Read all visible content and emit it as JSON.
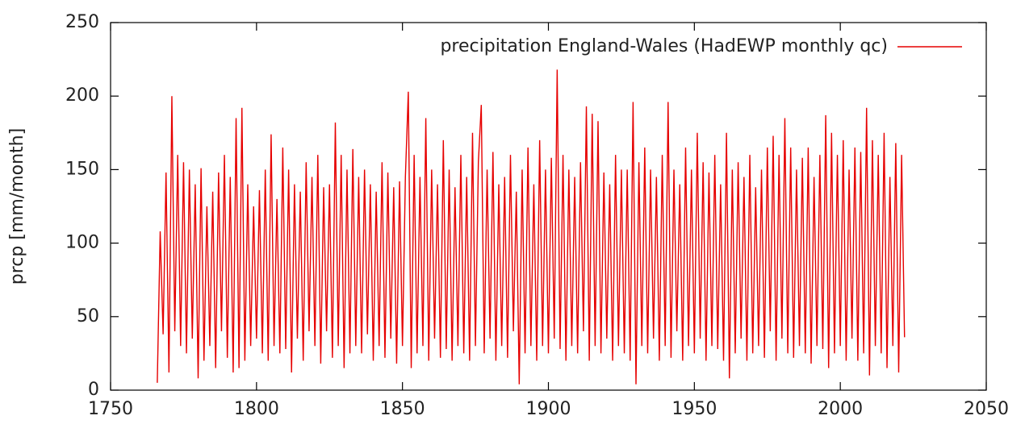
{
  "chart_data": {
    "type": "line",
    "ylabel": "prcp [mm/month]",
    "xlim": [
      1750,
      2050
    ],
    "xticks": [
      1750,
      1800,
      1850,
      1900,
      1950,
      2000,
      2050
    ],
    "ylim": [
      0,
      250
    ],
    "yticks": [
      0,
      50,
      100,
      150,
      200,
      250
    ],
    "legend": "top right",
    "x": [
      1766,
      1767,
      1768,
      1769,
      1770,
      1771,
      1772,
      1773,
      1774,
      1775,
      1776,
      1777,
      1778,
      1779,
      1780,
      1781,
      1782,
      1783,
      1784,
      1785,
      1786,
      1787,
      1788,
      1789,
      1790,
      1791,
      1792,
      1793,
      1794,
      1795,
      1796,
      1797,
      1798,
      1799,
      1800,
      1801,
      1802,
      1803,
      1804,
      1805,
      1806,
      1807,
      1808,
      1809,
      1810,
      1811,
      1812,
      1813,
      1814,
      1815,
      1816,
      1817,
      1818,
      1819,
      1820,
      1821,
      1822,
      1823,
      1824,
      1825,
      1826,
      1827,
      1828,
      1829,
      1830,
      1831,
      1832,
      1833,
      1834,
      1835,
      1836,
      1837,
      1838,
      1839,
      1840,
      1841,
      1842,
      1843,
      1844,
      1845,
      1846,
      1847,
      1848,
      1849,
      1850,
      1851,
      1852,
      1853,
      1854,
      1855,
      1856,
      1857,
      1858,
      1859,
      1860,
      1861,
      1862,
      1863,
      1864,
      1865,
      1866,
      1867,
      1868,
      1869,
      1870,
      1871,
      1872,
      1873,
      1874,
      1875,
      1876,
      1877,
      1878,
      1879,
      1880,
      1881,
      1882,
      1883,
      1884,
      1885,
      1886,
      1887,
      1888,
      1889,
      1890,
      1891,
      1892,
      1893,
      1894,
      1895,
      1896,
      1897,
      1898,
      1899,
      1900,
      1901,
      1902,
      1903,
      1904,
      1905,
      1906,
      1907,
      1908,
      1909,
      1910,
      1911,
      1912,
      1913,
      1914,
      1915,
      1916,
      1917,
      1918,
      1919,
      1920,
      1921,
      1922,
      1923,
      1924,
      1925,
      1926,
      1927,
      1928,
      1929,
      1930,
      1931,
      1932,
      1933,
      1934,
      1935,
      1936,
      1937,
      1938,
      1939,
      1940,
      1941,
      1942,
      1943,
      1944,
      1945,
      1946,
      1947,
      1948,
      1949,
      1950,
      1951,
      1952,
      1953,
      1954,
      1955,
      1956,
      1957,
      1958,
      1959,
      1960,
      1961,
      1962,
      1963,
      1964,
      1965,
      1966,
      1967,
      1968,
      1969,
      1970,
      1971,
      1972,
      1973,
      1974,
      1975,
      1976,
      1977,
      1978,
      1979,
      1980,
      1981,
      1982,
      1983,
      1984,
      1985,
      1986,
      1987,
      1988,
      1989,
      1990,
      1991,
      1992,
      1993,
      1994,
      1995,
      1996,
      1997,
      1998,
      1999,
      2000,
      2001,
      2002,
      2003,
      2004,
      2005,
      2006,
      2007,
      2008,
      2009,
      2010,
      2011,
      2012,
      2013,
      2014,
      2015,
      2016,
      2017,
      2018,
      2019,
      2020,
      2021,
      2022
    ],
    "series": [
      {
        "name": "precipitation England-Wales (HadEWP monthly qc)",
        "color": "#e60000",
        "values": [
          5,
          108,
          38,
          148,
          12,
          200,
          40,
          160,
          30,
          155,
          25,
          150,
          35,
          140,
          8,
          151,
          20,
          125,
          30,
          135,
          15,
          148,
          40,
          160,
          22,
          145,
          12,
          185,
          15,
          192,
          20,
          140,
          30,
          125,
          35,
          136,
          25,
          150,
          20,
          174,
          30,
          130,
          25,
          165,
          28,
          150,
          12,
          140,
          35,
          135,
          20,
          155,
          40,
          145,
          30,
          160,
          18,
          138,
          40,
          140,
          22,
          182,
          30,
          160,
          15,
          150,
          25,
          164,
          30,
          145,
          25,
          150,
          38,
          140,
          20,
          135,
          30,
          155,
          22,
          148,
          35,
          138,
          18,
          142,
          30,
          145,
          203,
          15,
          160,
          25,
          145,
          30,
          185,
          20,
          150,
          35,
          140,
          22,
          170,
          28,
          150,
          20,
          138,
          30,
          160,
          25,
          145,
          20,
          175,
          30,
          155,
          194,
          25,
          150,
          35,
          162,
          20,
          140,
          30,
          145,
          22,
          160,
          40,
          135,
          4,
          150,
          25,
          165,
          30,
          140,
          20,
          170,
          30,
          150,
          25,
          158,
          35,
          218,
          28,
          160,
          20,
          150,
          30,
          145,
          25,
          155,
          40,
          193,
          20,
          188,
          30,
          183,
          25,
          148,
          35,
          140,
          20,
          160,
          30,
          150,
          25,
          150,
          20,
          196,
          4,
          155,
          30,
          165,
          25,
          150,
          35,
          145,
          20,
          160,
          30,
          196,
          22,
          150,
          40,
          140,
          20,
          165,
          30,
          150,
          25,
          175,
          35,
          155,
          20,
          148,
          30,
          160,
          28,
          140,
          20,
          175,
          8,
          150,
          25,
          155,
          35,
          145,
          20,
          160,
          25,
          138,
          30,
          150,
          22,
          165,
          40,
          173,
          20,
          160,
          35,
          185,
          25,
          165,
          22,
          150,
          30,
          158,
          25,
          165,
          18,
          145,
          30,
          160,
          28,
          187,
          15,
          175,
          25,
          160,
          30,
          170,
          20,
          150,
          35,
          165,
          20,
          162,
          25,
          192,
          10,
          170,
          30,
          160,
          25,
          175,
          15,
          145,
          30,
          168,
          12,
          160,
          36
        ]
      }
    ]
  }
}
